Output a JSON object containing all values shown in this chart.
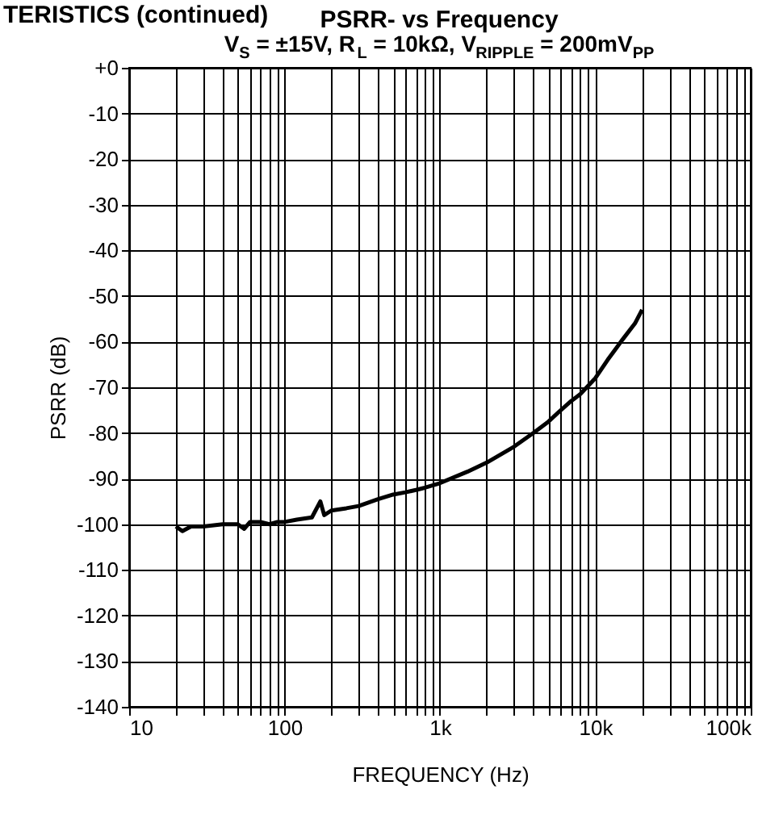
{
  "chart_data": {
    "type": "line",
    "title": "PSRR- vs Frequency",
    "subtitle": "V$_{S}$ = ±15V, R$_{L}$ = 10kΩ, V$_{RIPPLE}$ = 200mV$_{PP}$",
    "annotations": [
      "TERISTICS (continued)"
    ],
    "xlabel": "FREQUENCY (Hz)",
    "ylabel": "PSRR (dB)",
    "log": "x",
    "grid": true,
    "legend": false,
    "marker": "none",
    "line_style": "solid",
    "xlim": [
      10,
      100000
    ],
    "ylim": [
      -140,
      0
    ],
    "xticks": [
      {
        "value": 10,
        "label": "10"
      },
      {
        "value": 20,
        "label": null
      },
      {
        "value": 30,
        "label": null
      },
      {
        "value": 40,
        "label": null
      },
      {
        "value": 50,
        "label": null
      },
      {
        "value": 60,
        "label": null
      },
      {
        "value": 70,
        "label": null
      },
      {
        "value": 80,
        "label": null
      },
      {
        "value": 90,
        "label": null
      },
      {
        "value": 100,
        "label": "100"
      },
      {
        "value": 200,
        "label": null
      },
      {
        "value": 300,
        "label": null
      },
      {
        "value": 400,
        "label": null
      },
      {
        "value": 500,
        "label": null
      },
      {
        "value": 600,
        "label": null
      },
      {
        "value": 700,
        "label": null
      },
      {
        "value": 800,
        "label": null
      },
      {
        "value": 900,
        "label": null
      },
      {
        "value": 1000,
        "label": "1k"
      },
      {
        "value": 2000,
        "label": null
      },
      {
        "value": 3000,
        "label": null
      },
      {
        "value": 4000,
        "label": null
      },
      {
        "value": 5000,
        "label": null
      },
      {
        "value": 6000,
        "label": null
      },
      {
        "value": 7000,
        "label": null
      },
      {
        "value": 8000,
        "label": null
      },
      {
        "value": 9000,
        "label": null
      },
      {
        "value": 10000,
        "label": "10k"
      },
      {
        "value": 20000,
        "label": null
      },
      {
        "value": 30000,
        "label": null
      },
      {
        "value": 40000,
        "label": null
      },
      {
        "value": 50000,
        "label": null
      },
      {
        "value": 60000,
        "label": null
      },
      {
        "value": 70000,
        "label": null
      },
      {
        "value": 80000,
        "label": null
      },
      {
        "value": 90000,
        "label": null
      },
      {
        "value": 100000,
        "label": "100k"
      }
    ],
    "yticks": [
      {
        "value": 0,
        "label": "+0"
      },
      -10,
      -20,
      -30,
      -40,
      -50,
      -60,
      -70,
      -80,
      -90,
      -100,
      -110,
      -120,
      -130,
      -140
    ],
    "series": [
      {
        "color": "#000000",
        "x": [
          20,
          22,
          25,
          30,
          40,
          50,
          55,
          60,
          70,
          80,
          90,
          100,
          120,
          150,
          170,
          180,
          200,
          250,
          300,
          400,
          500,
          600,
          700,
          800,
          1000,
          1500,
          2000,
          3000,
          4000,
          5000,
          6000,
          7000,
          8000,
          10000,
          12000,
          15000,
          18000,
          20000
        ],
        "values": [
          -100.5,
          -101.5,
          -100.5,
          -100.5,
          -100,
          -100,
          -101,
          -99.5,
          -99.5,
          -100,
          -99.5,
          -99.5,
          -99,
          -98.5,
          -95,
          -98,
          -97,
          -96.5,
          -96,
          -94.5,
          -93.5,
          -93,
          -92.5,
          -92,
          -91,
          -88.5,
          -86.5,
          -83,
          -80,
          -77.5,
          -75,
          -73,
          -71.5,
          -68,
          -64,
          -59.5,
          -56,
          -53
        ]
      }
    ]
  }
}
